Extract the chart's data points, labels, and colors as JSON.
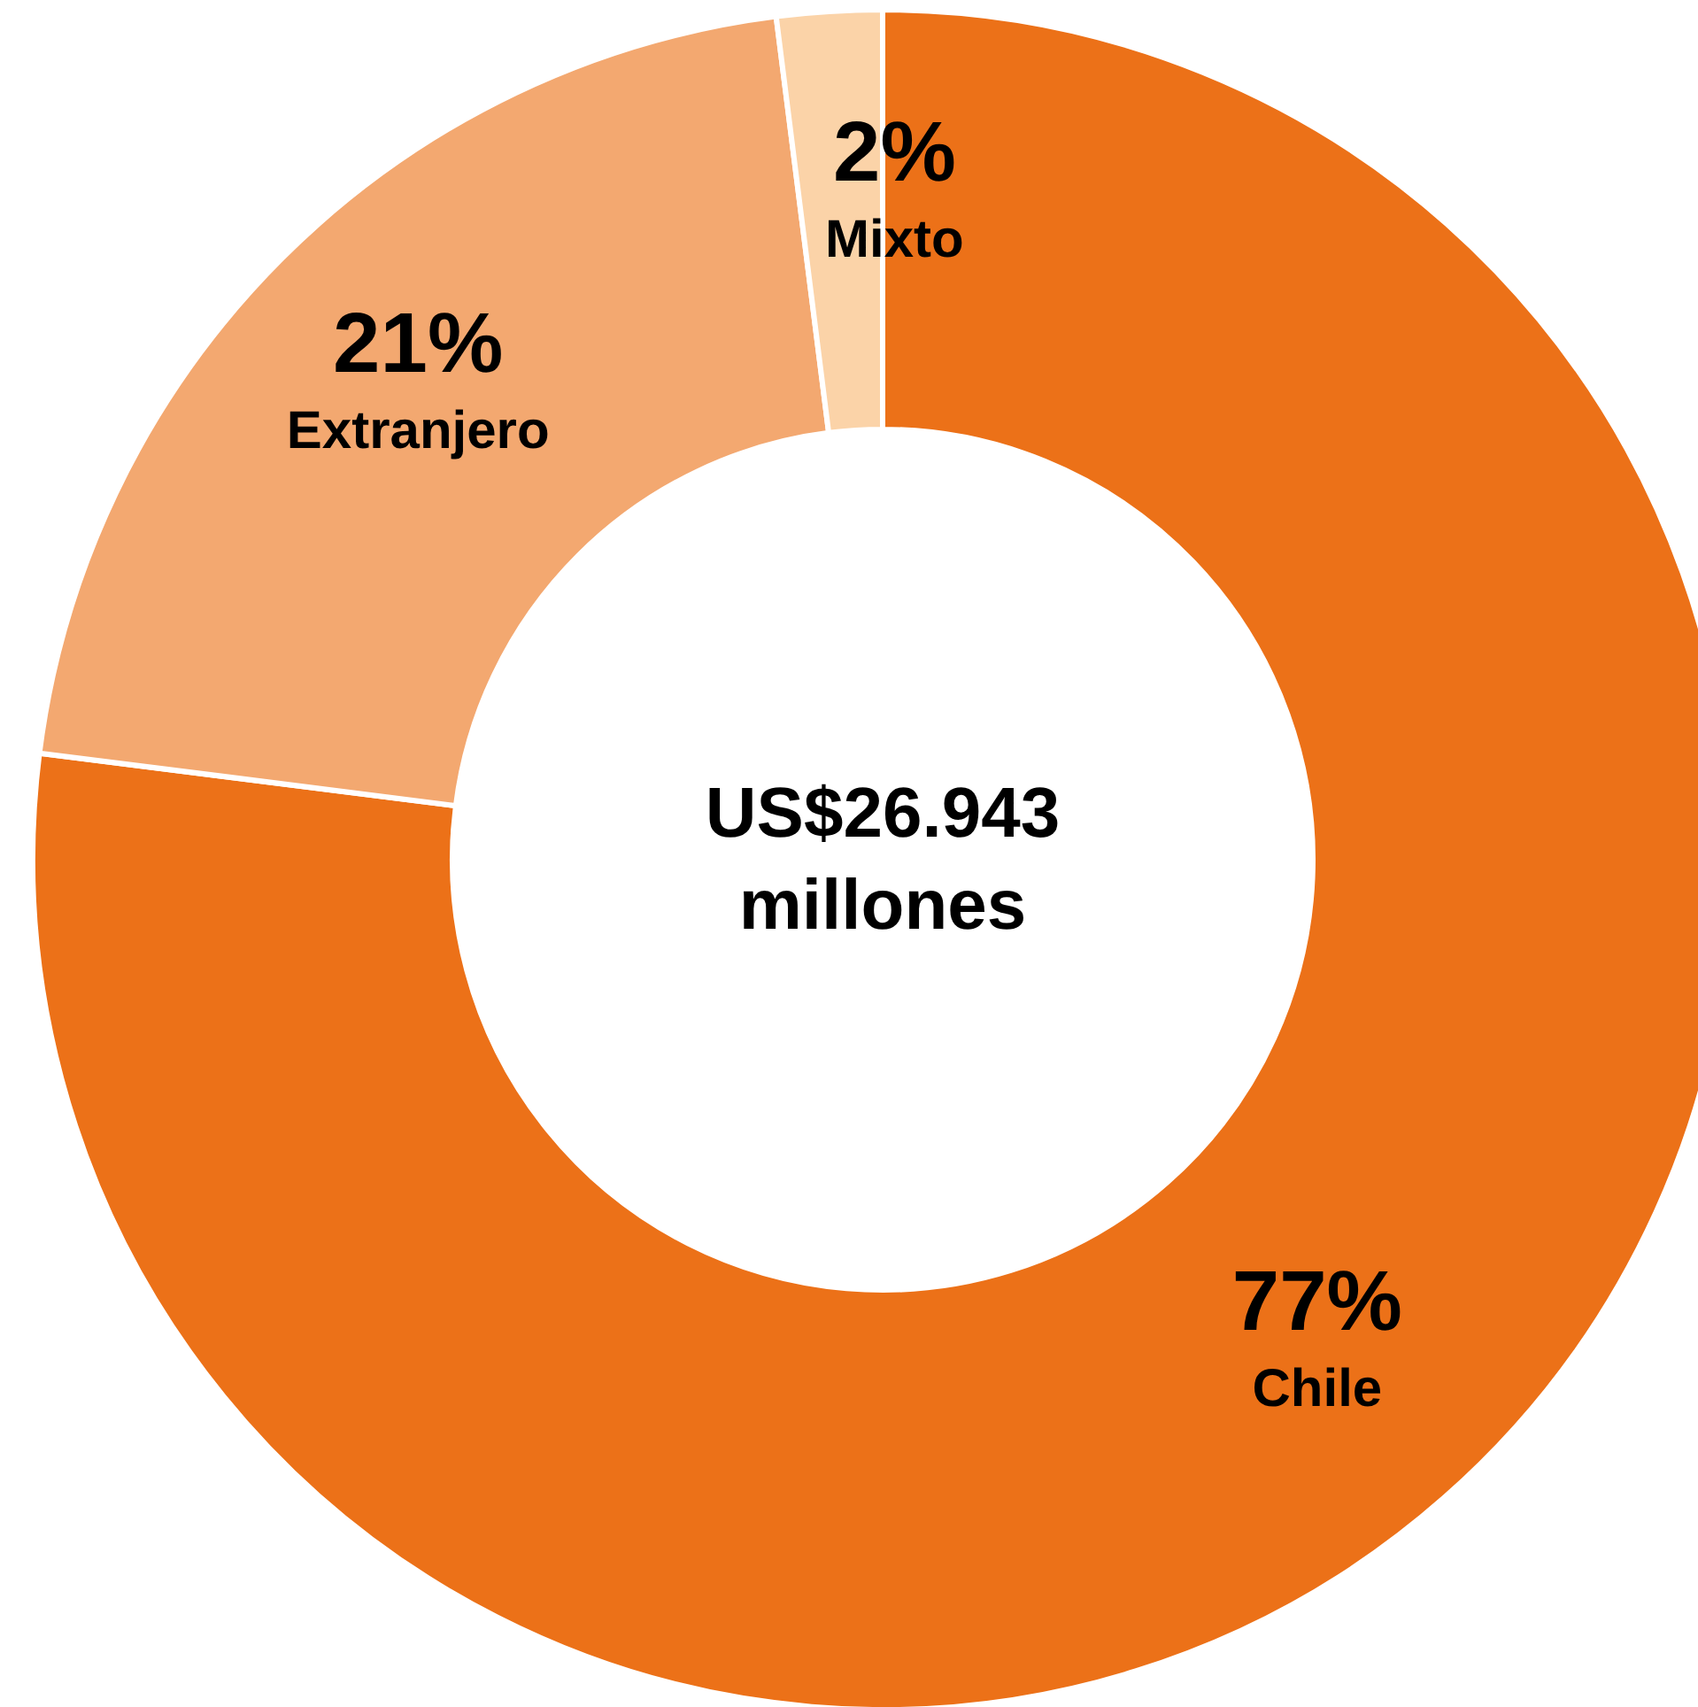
{
  "chart_data": {
    "type": "donut",
    "categories": [
      "Chile",
      "Extranjero",
      "Mixto"
    ],
    "values": [
      77,
      21,
      2
    ],
    "colors": [
      "#ec7118",
      "#f3a870",
      "#fbd3a8"
    ],
    "value_labels": [
      "77%",
      "21%",
      "2%"
    ],
    "annotations": [
      "US$26.943\nmillones"
    ]
  }
}
